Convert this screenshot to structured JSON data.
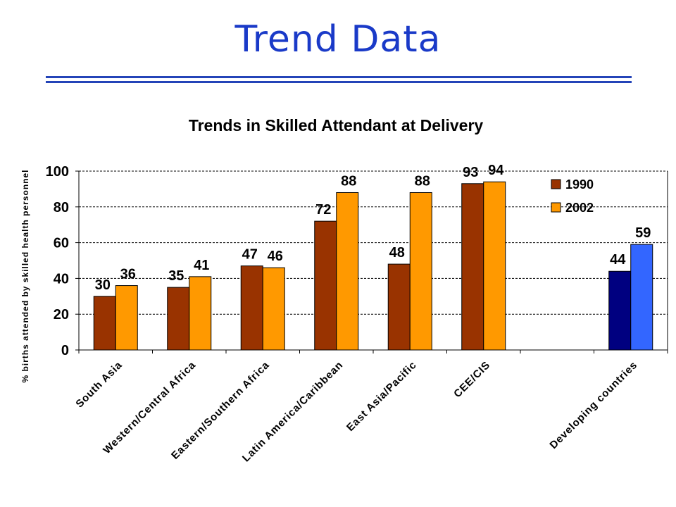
{
  "slide": {
    "title": "Trend Data"
  },
  "colors": {
    "title": "#1a3ac8",
    "rule": "#2444b8",
    "series_1990": "#993300",
    "series_2002": "#ff9900",
    "highlight_1990": "#000080",
    "highlight_2002": "#3366ff"
  },
  "chart_data": {
    "type": "bar",
    "title": "Trends in Skilled Attendant at Delivery",
    "ylabel": "% births attended by skilled health personnel",
    "xlabel": "",
    "ylim": [
      0,
      100
    ],
    "yticks": [
      0,
      20,
      40,
      60,
      80,
      100
    ],
    "grid": true,
    "legend_position": "top-right",
    "categories": [
      "South Asia",
      "Western/Central Africa",
      "Eastern/Southern Africa",
      "Latin America/Caribbean",
      "East Asia/Pacific",
      "CEE/CIS",
      "",
      "Developing countries"
    ],
    "series": [
      {
        "name": "1990",
        "values": [
          30,
          35,
          47,
          72,
          48,
          93,
          null,
          44
        ]
      },
      {
        "name": "2002",
        "values": [
          36,
          41,
          46,
          88,
          88,
          94,
          null,
          59
        ]
      }
    ],
    "highlight_category": "Developing countries"
  }
}
